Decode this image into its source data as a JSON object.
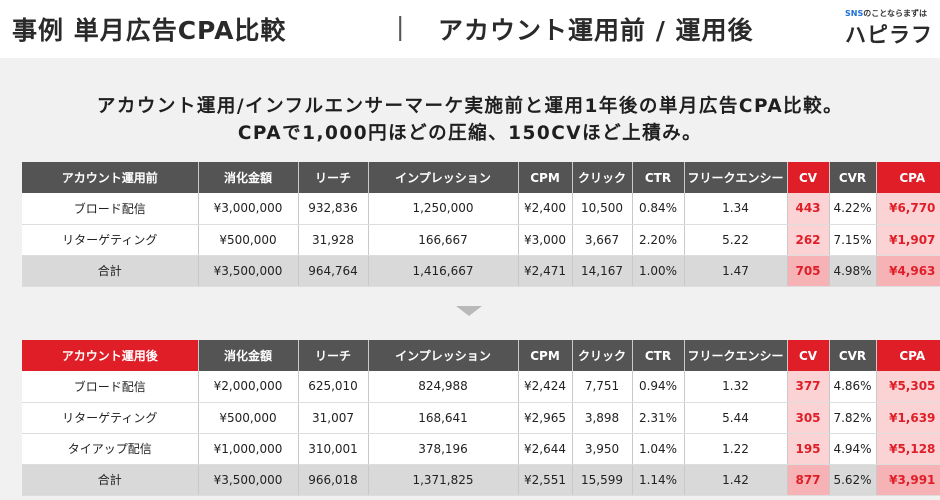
{
  "header": {
    "title": "事例 単月広告CPA比較",
    "separator": "|",
    "subtitle": "アカウント運用前 / 運用後",
    "logo_tag_sns": "SNS",
    "logo_tag_rest": "のことならまずは",
    "logo_name": "ハピラフ"
  },
  "summary": {
    "line1": "アカウント運用/インフルエンサーマーケ実施前と運用1年後の単月広告CPA比較。",
    "line2": "CPAで1,000円ほどの圧縮、150CVほど上積み。"
  },
  "columns": [
    "消化金額",
    "リーチ",
    "インプレッション",
    "CPM",
    "クリック",
    "CTR",
    "フリークエンシー",
    "CV",
    "CVR",
    "CPA"
  ],
  "before": {
    "label": "アカウント運用前",
    "rows": [
      {
        "name": "ブロード配信",
        "cells": [
          "¥3,000,000",
          "932,836",
          "1,250,000",
          "¥2,400",
          "10,500",
          "0.84%",
          "1.34",
          "443",
          "4.22%",
          "¥6,770"
        ]
      },
      {
        "name": "リターゲティング",
        "cells": [
          "¥500,000",
          "31,928",
          "166,667",
          "¥3,000",
          "3,667",
          "2.20%",
          "5.22",
          "262",
          "7.15%",
          "¥1,907"
        ]
      },
      {
        "name": "合計",
        "cells": [
          "¥3,500,000",
          "964,764",
          "1,416,667",
          "¥2,471",
          "14,167",
          "1.00%",
          "1.47",
          "705",
          "4.98%",
          "¥4,963"
        ]
      }
    ]
  },
  "after": {
    "label": "アカウント運用後",
    "rows": [
      {
        "name": "ブロード配信",
        "cells": [
          "¥2,000,000",
          "625,010",
          "824,988",
          "¥2,424",
          "7,751",
          "0.94%",
          "1.32",
          "377",
          "4.86%",
          "¥5,305"
        ]
      },
      {
        "name": "リターゲティング",
        "cells": [
          "¥500,000",
          "31,007",
          "168,641",
          "¥2,965",
          "3,898",
          "2.31%",
          "5.44",
          "305",
          "7.82%",
          "¥1,639"
        ]
      },
      {
        "name": "タイアップ配信",
        "cells": [
          "¥1,000,000",
          "310,001",
          "378,196",
          "¥2,644",
          "3,950",
          "1.04%",
          "1.22",
          "195",
          "4.94%",
          "¥5,128"
        ]
      },
      {
        "name": "合計",
        "cells": [
          "¥3,500,000",
          "966,018",
          "1,371,825",
          "¥2,551",
          "15,599",
          "1.14%",
          "1.42",
          "877",
          "5.62%",
          "¥3,991"
        ]
      }
    ]
  }
}
